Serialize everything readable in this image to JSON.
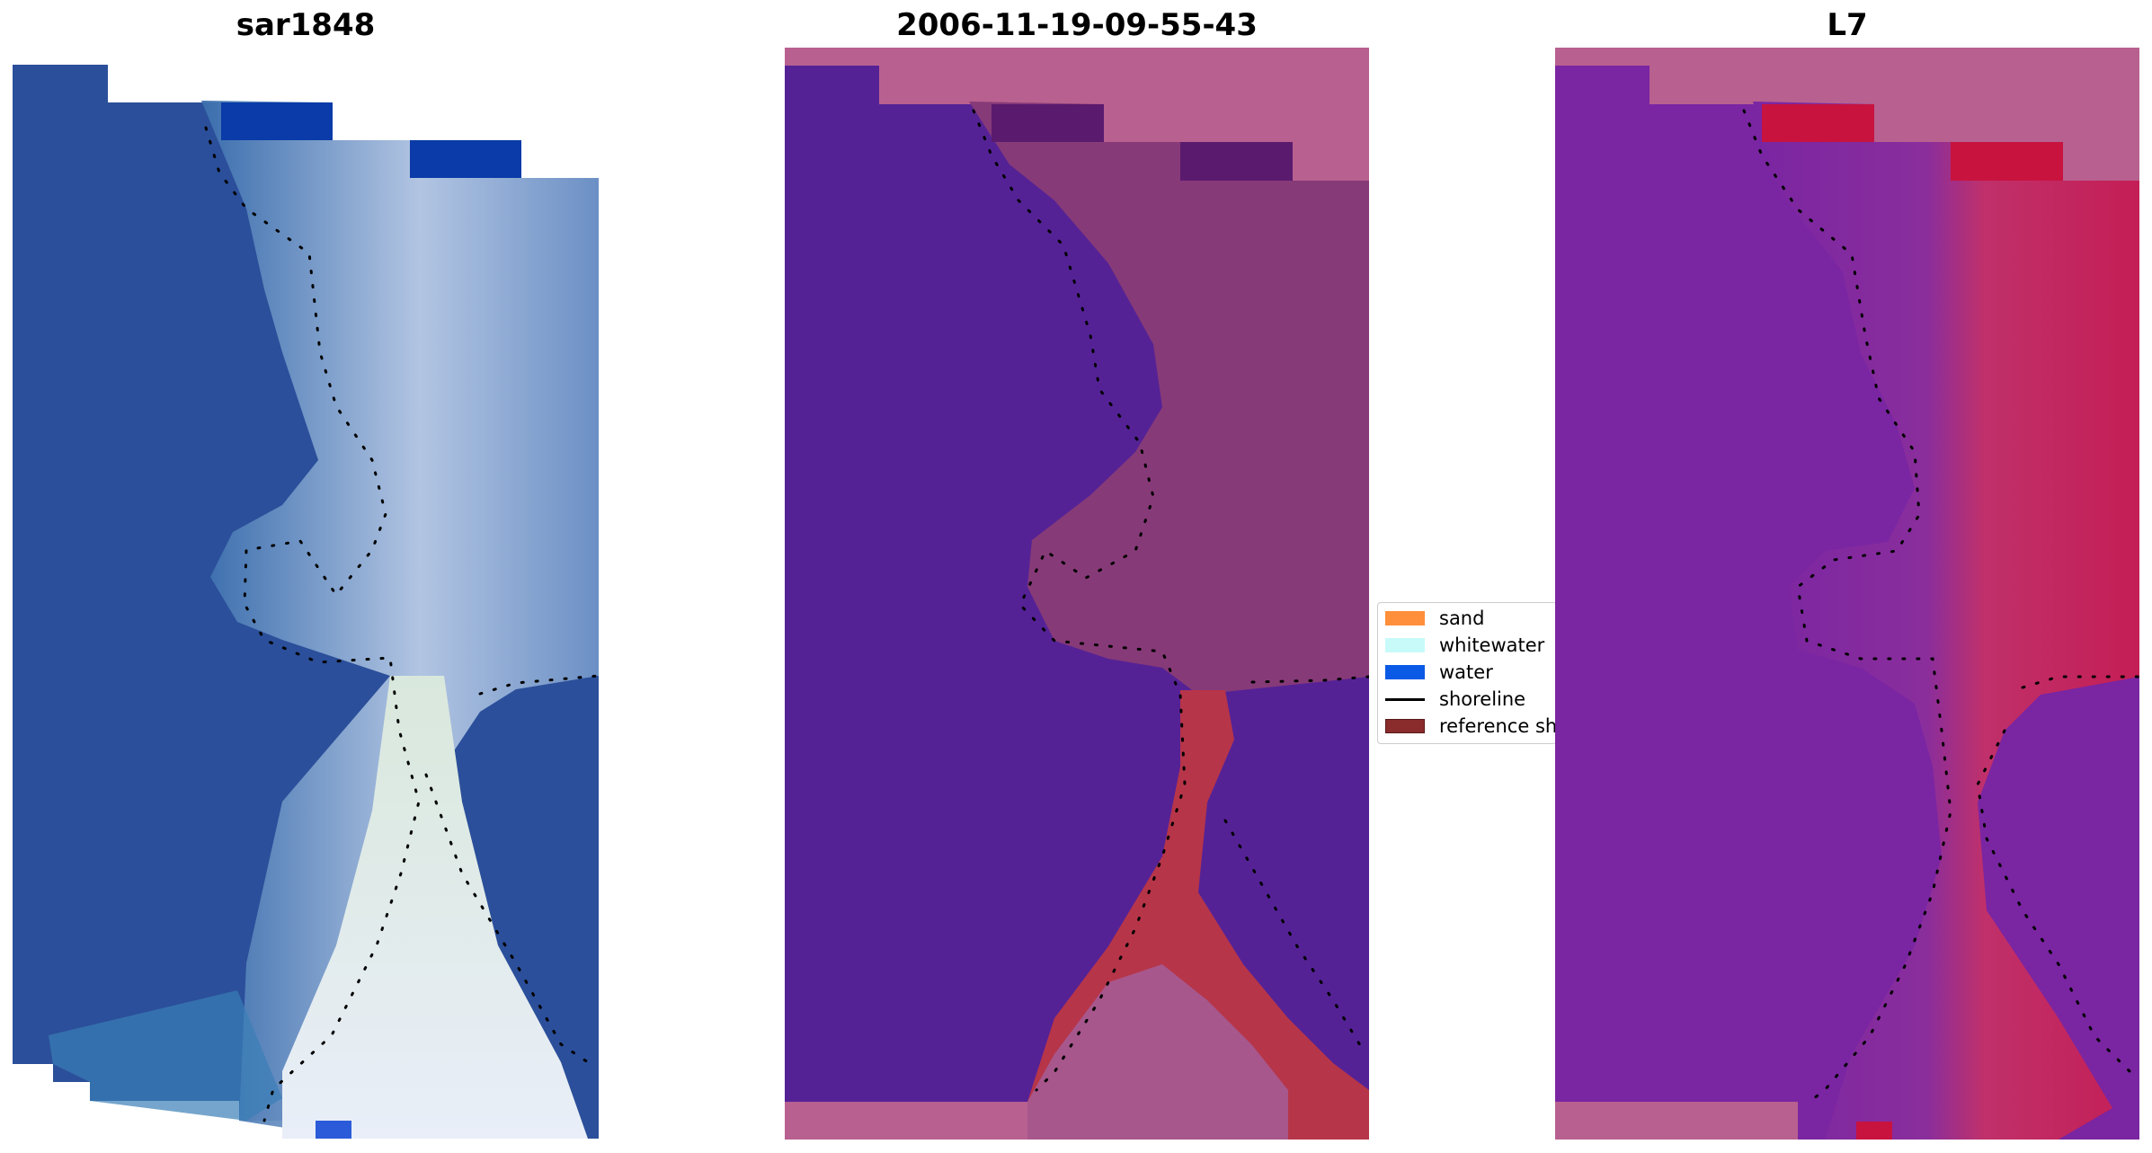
{
  "panels": [
    {
      "title": "sar1848"
    },
    {
      "title": "2006-11-19-09-55-43"
    },
    {
      "title": "L7"
    }
  ],
  "legend": [
    {
      "label": "sand",
      "color": "#ff8f3a",
      "kind": "patch"
    },
    {
      "label": "whitewater",
      "color": "#c8fafa",
      "kind": "patch"
    },
    {
      "label": "water",
      "color": "#0a5ae6",
      "kind": "patch"
    },
    {
      "label": "shoreline",
      "color": "#000000",
      "kind": "line"
    },
    {
      "label": "reference shoreline",
      "color": "#8a2c2c",
      "kind": "patch"
    }
  ],
  "colors": {
    "rgb_water": "#2b4f9a",
    "rgb_surf": "#c8d6ea",
    "class_water": "#552296",
    "class_land": "#873a78",
    "class_sand": "#b73549",
    "class_nodata": "#b8608f",
    "mndwi_low": "#7a25a2",
    "mndwi_high": "#c41e55",
    "shoreline_dots": "#000000"
  }
}
